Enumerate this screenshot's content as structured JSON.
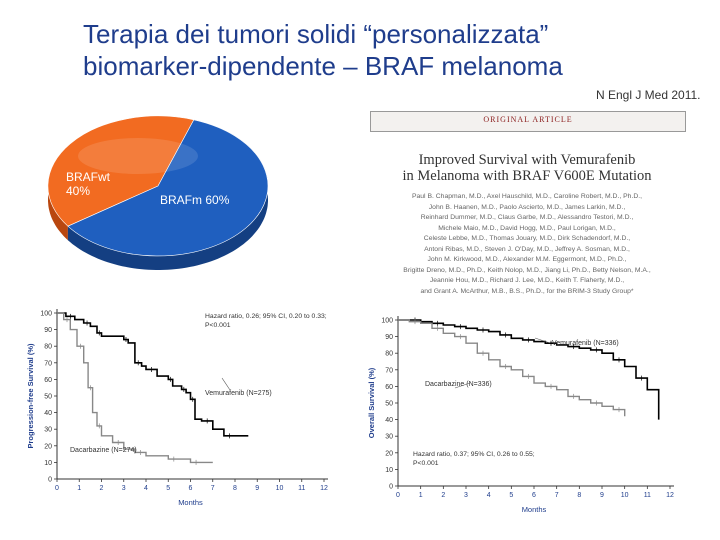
{
  "title": {
    "line1": "Terapia dei tumori solidi “personalizzata”",
    "line2": "biomarker-dipendente – BRAF melanoma"
  },
  "article": {
    "journal": "N Engl J Med 2011.",
    "section": "ORIGINAL ARTICLE",
    "title_line1": "Improved Survival with Vemurafenib",
    "title_line2": "in Melanoma with BRAF V600E Mutation",
    "authors": [
      "Paul B. Chapman, M.D., Axel Hauschild, M.D., Caroline Robert, M.D., Ph.D.,",
      "John B. Haanen, M.D., Paolo Ascierto, M.D., James Larkin, M.D.,",
      "Reinhard Dummer, M.D., Claus Garbe, M.D., Alessandro Testori, M.D.,",
      "Michele Maio, M.D., David Hogg, M.D., Paul Lorigan, M.D.,",
      "Celeste Lebbe, M.D., Thomas Jouary, M.D., Dirk Schadendorf, M.D.,",
      "Antoni Ribas, M.D., Steven J. O'Day, M.D., Jeffrey A. Sosman, M.D.,",
      "John M. Kirkwood, M.D., Alexander M.M. Eggermont, M.D., Ph.D.,",
      "Brigitte Dreno, M.D., Ph.D., Keith Nolop, M.D., Jiang Li, Ph.D., Betty Nelson, M.A.,",
      "Jeannie Hou, M.D., Richard J. Lee, M.D., Keith T. Flaherty, M.D.,",
      "and Grant A. McArthur, M.B., B.S., Ph.D., for the BRIM-3 Study Group*"
    ]
  },
  "chart_data": [
    {
      "type": "pie",
      "slices": [
        {
          "label": "BRAFwt",
          "value_label": "40%",
          "value": 40,
          "color": "#f26b21"
        },
        {
          "label": "BRAFm",
          "value_label": "60%",
          "value": 60,
          "color": "#1f5fbf"
        }
      ]
    },
    {
      "type": "line",
      "xlabel": "Months",
      "ylabel": "Progression-free Survival (%)",
      "xlim": [
        0,
        12
      ],
      "ylim": [
        0,
        100
      ],
      "xticks": [
        0,
        1,
        2,
        3,
        4,
        5,
        6,
        7,
        8,
        9,
        10,
        11,
        12
      ],
      "yticks": [
        0,
        10,
        20,
        30,
        40,
        50,
        60,
        70,
        80,
        90,
        100
      ],
      "annotation": [
        "Hazard ratio, 0.26; 95% CI, 0.20 to 0.33;",
        "P<0.001"
      ],
      "series": [
        {
          "name": "Vemurafenib (N=275)",
          "color": "#000000",
          "x": [
            0,
            0.4,
            0.8,
            1.2,
            1.5,
            1.8,
            2.0,
            3.0,
            3.2,
            3.5,
            3.8,
            4.0,
            4.5,
            5.0,
            5.2,
            5.6,
            5.8,
            6.0,
            6.2,
            6.5,
            7.0,
            7.5,
            8.0,
            8.6
          ],
          "y": [
            100,
            98,
            96,
            94,
            92,
            88,
            86,
            84,
            82,
            70,
            68,
            66,
            62,
            60,
            56,
            54,
            52,
            48,
            36,
            35,
            30,
            26,
            26,
            26
          ]
        },
        {
          "name": "Dacarbazine (N=274)",
          "color": "#888888",
          "x": [
            0,
            0.3,
            0.6,
            0.9,
            1.2,
            1.4,
            1.6,
            1.8,
            2.0,
            2.5,
            3.0,
            3.5,
            4.0,
            5.0,
            5.5,
            6.0,
            6.5,
            7.0
          ],
          "y": [
            100,
            96,
            90,
            80,
            70,
            55,
            40,
            32,
            26,
            22,
            18,
            16,
            14,
            12,
            12,
            10,
            10,
            10
          ]
        }
      ]
    },
    {
      "type": "line",
      "xlabel": "Months",
      "ylabel": "Overall Survival (%)",
      "xlim": [
        0,
        12
      ],
      "ylim": [
        0,
        100
      ],
      "xticks": [
        0,
        1,
        2,
        3,
        4,
        5,
        6,
        7,
        8,
        9,
        10,
        11,
        12
      ],
      "yticks": [
        0,
        10,
        20,
        30,
        40,
        50,
        60,
        70,
        80,
        90,
        100
      ],
      "annotation": [
        "Hazard ratio, 0.37; 95% CI, 0.26 to 0.55;",
        "P<0.001"
      ],
      "series": [
        {
          "name": "Vemurafenib (N=336)",
          "color": "#000000",
          "x": [
            0,
            0.5,
            1.0,
            1.5,
            2.0,
            2.5,
            3.0,
            3.5,
            4.0,
            4.5,
            5.0,
            5.5,
            6.0,
            6.5,
            7.0,
            7.5,
            8.0,
            8.5,
            9.0,
            9.5,
            10.0,
            10.5,
            11.0,
            11.5
          ],
          "y": [
            100,
            100,
            99,
            98,
            97,
            96,
            95,
            94,
            93,
            91,
            89,
            88,
            87,
            86,
            85,
            84,
            83,
            82,
            80,
            76,
            72,
            65,
            58,
            40
          ]
        },
        {
          "name": "Dacarbazine (N=336)",
          "color": "#888888",
          "x": [
            0,
            0.5,
            1.0,
            1.5,
            2.0,
            2.5,
            3.0,
            3.5,
            4.0,
            4.5,
            5.0,
            5.5,
            6.0,
            6.5,
            7.0,
            7.5,
            8.0,
            8.5,
            9.0,
            9.5,
            10.0
          ],
          "y": [
            100,
            99,
            98,
            95,
            92,
            90,
            86,
            80,
            76,
            72,
            70,
            66,
            62,
            60,
            58,
            54,
            52,
            50,
            48,
            46,
            42
          ]
        }
      ]
    }
  ]
}
